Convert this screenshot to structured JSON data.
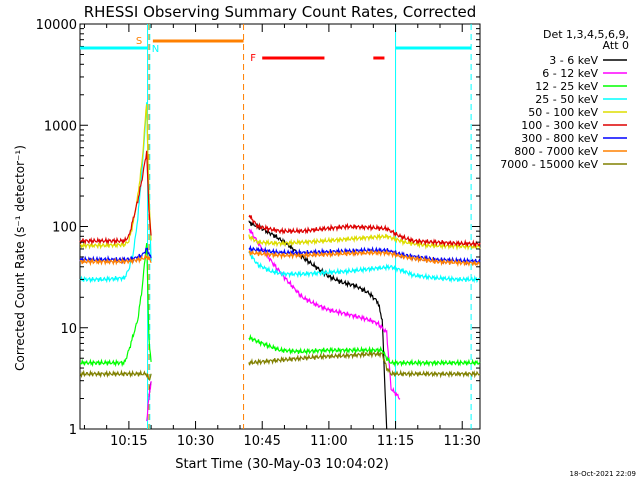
{
  "chart_data": {
    "type": "line",
    "title": "RHESSI Observing Summary Count Rates, Corrected",
    "xlabel": "Start Time (30-May-03 10:04:02)",
    "ylabel": "Corrected Count Rate (s⁻¹ detector⁻¹)",
    "yscale": "log",
    "ylim": [
      1,
      10000
    ],
    "xlim_minutes_after_start": [
      0,
      90
    ],
    "x_ticks": [
      {
        "label": "10:15",
        "minute": 11
      },
      {
        "label": "10:30",
        "minute": 26
      },
      {
        "label": "10:45",
        "minute": 41
      },
      {
        "label": "11:00",
        "minute": 56
      },
      {
        "label": "11:15",
        "minute": 71
      },
      {
        "label": "11:30",
        "minute": 86
      }
    ],
    "y_ticks": [
      {
        "label": "1",
        "value": 1
      },
      {
        "label": "10",
        "value": 10
      },
      {
        "label": "100",
        "value": 100
      },
      {
        "label": "1000",
        "value": 1000
      },
      {
        "label": "10000",
        "value": 10000
      }
    ],
    "legend_header": [
      "Det 1,3,4,5,6,9,",
      "Att 0"
    ],
    "legend_placement": "right",
    "series": [
      {
        "name": "3 - 6 keV",
        "color": "#000000",
        "x": [
          0,
          15,
          15.5,
          16,
          37.5,
          38,
          41,
          44,
          47,
          50,
          53,
          56,
          59,
          62,
          65,
          67,
          68,
          69
        ],
        "values": [
          null,
          null,
          2,
          3,
          null,
          110,
          95,
          80,
          65,
          50,
          40,
          32,
          28,
          26,
          22,
          18,
          12,
          1
        ]
      },
      {
        "name": "6 - 12 keV",
        "color": "#ff00ff",
        "x": [
          0,
          15,
          15.5,
          16,
          37.5,
          38,
          41,
          44,
          47,
          50,
          53,
          56,
          59,
          62,
          65,
          67,
          69,
          70,
          72
        ],
        "values": [
          null,
          1.2,
          2,
          3,
          null,
          95,
          60,
          40,
          28,
          20,
          17,
          15,
          14,
          13,
          12,
          11,
          9,
          2.5,
          2
        ]
      },
      {
        "name": "12 - 25 keV",
        "color": "#00ff00",
        "x": [
          0,
          5,
          10,
          11,
          13,
          14,
          15,
          15.5,
          16,
          37.5,
          38,
          41,
          45,
          50,
          55,
          60,
          65,
          68,
          69,
          70,
          75,
          80,
          90
        ],
        "values": [
          4.5,
          4.5,
          4.5,
          6,
          12,
          25,
          70,
          8,
          4.5,
          null,
          8,
          7,
          6,
          5.8,
          6,
          6,
          6,
          6,
          5,
          4.5,
          4.5,
          4.5,
          4.5
        ]
      },
      {
        "name": "25 - 50 keV",
        "color": "#00ffff",
        "x": [
          0,
          5,
          10,
          11,
          12,
          13,
          14,
          15,
          15.5,
          16,
          37.5,
          38,
          40,
          43,
          46,
          50,
          55,
          60,
          65,
          70,
          73,
          75,
          80,
          85,
          90
        ],
        "values": [
          30,
          30,
          31,
          38,
          55,
          120,
          380,
          1600,
          200,
          45,
          null,
          55,
          42,
          36,
          34,
          34,
          35,
          36,
          38,
          40,
          36,
          33,
          31,
          30,
          30
        ]
      },
      {
        "name": "50 - 100 keV",
        "color": "#dddd00",
        "x": [
          0,
          5,
          10,
          11,
          12,
          13,
          14,
          15,
          15.5,
          16,
          37.5,
          38,
          40,
          45,
          50,
          55,
          60,
          65,
          69,
          73,
          78,
          85,
          90
        ],
        "values": [
          65,
          65,
          66,
          72,
          110,
          200,
          450,
          1700,
          200,
          75,
          null,
          80,
          70,
          68,
          70,
          72,
          75,
          78,
          80,
          70,
          65,
          64,
          63
        ]
      },
      {
        "name": "100 - 300 keV",
        "color": "#dd0000",
        "x": [
          0,
          5,
          10,
          11,
          12,
          13,
          14,
          15,
          15.5,
          16,
          37.5,
          38,
          40,
          45,
          50,
          55,
          60,
          65,
          69,
          72,
          75,
          80,
          85,
          90
        ],
        "values": [
          72,
          72,
          72,
          80,
          120,
          180,
          300,
          550,
          150,
          80,
          null,
          130,
          100,
          90,
          90,
          95,
          100,
          98,
          95,
          80,
          72,
          70,
          68,
          67
        ]
      },
      {
        "name": "300 - 800 keV",
        "color": "#0000ff",
        "x": [
          0,
          5,
          10,
          12,
          14,
          15,
          15.5,
          16,
          37.5,
          38,
          45,
          50,
          55,
          60,
          65,
          69,
          73,
          80,
          90
        ],
        "values": [
          47,
          47,
          47,
          48,
          52,
          60,
          55,
          48,
          null,
          60,
          55,
          55,
          56,
          57,
          58,
          58,
          52,
          47,
          45
        ]
      },
      {
        "name": "800 - 7000 keV",
        "color": "#ff8000",
        "x": [
          0,
          5,
          10,
          12,
          14,
          15,
          15.5,
          16,
          37.5,
          38,
          45,
          50,
          55,
          60,
          65,
          69,
          73,
          80,
          90
        ],
        "values": [
          45,
          45,
          45,
          46,
          48,
          50,
          48,
          45,
          null,
          55,
          52,
          52,
          53,
          54,
          55,
          55,
          50,
          45,
          43
        ]
      },
      {
        "name": "7000 - 15000 keV",
        "color": "#808000",
        "x": [
          0,
          5,
          10,
          15,
          15.5,
          16,
          37.5,
          38,
          45,
          50,
          55,
          60,
          65,
          68,
          69,
          70,
          75,
          80,
          85,
          90
        ],
        "values": [
          3.5,
          3.5,
          3.5,
          3.5,
          3,
          3.5,
          null,
          4.5,
          4.8,
          5,
          5.2,
          5.3,
          5.5,
          5.5,
          4,
          3.5,
          3.5,
          3.5,
          3.5,
          3.5
        ]
      }
    ],
    "annotations": [
      {
        "label": "S",
        "kind": "SAA",
        "color": "#ff8000",
        "x_start": 15.5,
        "x_end": 36.8
      },
      {
        "label": "N",
        "kind": "Night",
        "color": "#00ffff",
        "x_start": 15.7,
        "x_end": 90
      },
      {
        "label": "F",
        "kind": "Flare",
        "color": "#ff0000",
        "segments": [
          [
            41,
            55
          ],
          [
            66,
            68.5
          ]
        ]
      }
    ],
    "night_bars": [
      [
        0,
        15.2
      ],
      [
        71,
        88
      ]
    ],
    "vertical_markers": [
      {
        "minute": 15.2,
        "color": "#00ffff",
        "style": "solid"
      },
      {
        "minute": 15.7,
        "color": "#00ffff",
        "style": "dashed"
      },
      {
        "minute": 15.5,
        "color": "#ff8000",
        "style": "dashed"
      },
      {
        "minute": 36.8,
        "color": "#ff8000",
        "style": "dashed"
      },
      {
        "minute": 71,
        "color": "#00ffff",
        "style": "solid"
      },
      {
        "minute": 88,
        "color": "#00ffff",
        "style": "dashed"
      }
    ]
  },
  "footer": {
    "timestamp": "18-Oct-2021 22:09"
  }
}
